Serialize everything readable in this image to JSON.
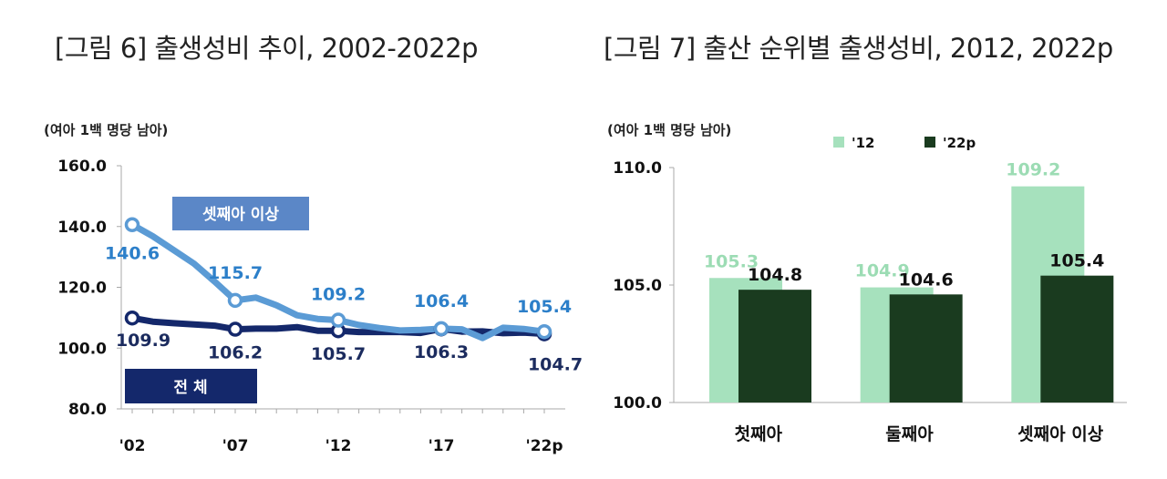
{
  "chart_data": [
    {
      "type": "line",
      "title": "[그림 6] 출생성비 추이, 2002-2022p",
      "unit_label": "(여아 1백 명당 남아)",
      "x": [
        2002,
        2007,
        2012,
        2017,
        2022
      ],
      "x_tick_labels": [
        "'02",
        "'07",
        "'12",
        "'17",
        "'22p"
      ],
      "ylim": [
        80,
        160
      ],
      "y_ticks": [
        "160.0",
        "140.0",
        "120.0",
        "100.0",
        "80.0"
      ],
      "series": [
        {
          "name": "셋째아 이상",
          "color": "#5b9bd5",
          "values": [
            140.6,
            115.7,
            109.2,
            106.4,
            105.4
          ],
          "labels": [
            "140.6",
            "115.7",
            "109.2",
            "106.4",
            "105.4"
          ],
          "annual_x": [
            2002,
            2003,
            2004,
            2005,
            2006,
            2007,
            2008,
            2009,
            2010,
            2011,
            2012,
            2013,
            2014,
            2015,
            2016,
            2017,
            2018,
            2019,
            2020,
            2021,
            2022
          ],
          "annual": [
            140.6,
            136.8,
            132.3,
            127.8,
            121.9,
            115.7,
            116.6,
            114.1,
            110.8,
            109.6,
            109.2,
            107.6,
            106.6,
            105.8,
            106.0,
            106.4,
            106.2,
            103.3,
            106.7,
            106.3,
            105.4
          ]
        },
        {
          "name": "전 체",
          "color": "#14286b",
          "values": [
            109.9,
            106.2,
            105.7,
            106.3,
            104.7
          ],
          "labels": [
            "109.9",
            "106.2",
            "105.7",
            "106.3",
            "104.7"
          ],
          "annual_x": [
            2002,
            2003,
            2004,
            2005,
            2006,
            2007,
            2008,
            2009,
            2010,
            2011,
            2012,
            2013,
            2014,
            2015,
            2016,
            2017,
            2018,
            2019,
            2020,
            2021,
            2022
          ],
          "annual": [
            109.9,
            108.7,
            108.2,
            107.8,
            107.4,
            106.2,
            106.4,
            106.4,
            106.9,
            105.7,
            105.7,
            105.3,
            105.3,
            105.3,
            105.0,
            106.3,
            105.4,
            105.5,
            104.9,
            105.1,
            104.7
          ]
        }
      ]
    },
    {
      "type": "bar",
      "title": "[그림 7] 출산 순위별 출생성비, 2012, 2022p",
      "unit_label": "(여아 1백 명당 남아)",
      "categories": [
        "첫째아",
        "둘째아",
        "셋째아 이상"
      ],
      "ylim": [
        100,
        110
      ],
      "y_ticks": [
        "110.0",
        "105.0",
        "100.0"
      ],
      "legend_position": "top",
      "series": [
        {
          "name": "'12",
          "color": "#a6e1bd",
          "values": [
            105.3,
            104.9,
            109.2
          ],
          "labels": [
            "105.3",
            "104.9",
            "109.2"
          ]
        },
        {
          "name": "'22p",
          "color": "#1a3b1f",
          "values": [
            104.8,
            104.6,
            105.4
          ],
          "labels": [
            "104.8",
            "104.6",
            "105.4"
          ]
        }
      ]
    }
  ]
}
